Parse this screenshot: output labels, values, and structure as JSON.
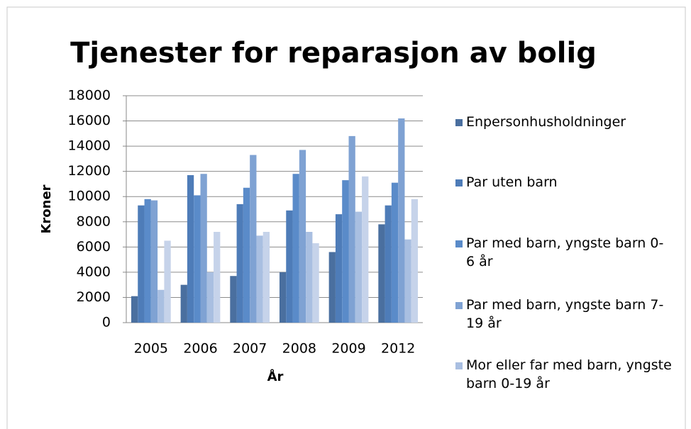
{
  "chart_data": {
    "type": "bar",
    "title": "Tjenester for reparasjon av bolig",
    "x_label": "År",
    "y_label": "Kroner",
    "categories": [
      "2005",
      "2006",
      "2007",
      "2008",
      "2009",
      "2012"
    ],
    "series": [
      {
        "name": "Enpersonhusholdninger",
        "color": "#4a6f9f",
        "values": [
          2100,
          3000,
          3700,
          4000,
          5600,
          7800
        ]
      },
      {
        "name": "Par uten barn",
        "color": "#4e7cb8",
        "values": [
          9300,
          11700,
          9400,
          8900,
          8600,
          9300
        ]
      },
      {
        "name": "Par med barn, yngste barn 0-6 år",
        "color": "#5a8bc9",
        "values": [
          9800,
          10100,
          10700,
          11800,
          11300,
          11100
        ]
      },
      {
        "name": "Par med barn, yngste barn 7-19 år",
        "color": "#7fa2d3",
        "values": [
          9700,
          11800,
          13300,
          13700,
          14800,
          16200
        ]
      },
      {
        "name": "Mor eller far med barn, yngste barn 0-19 år",
        "color": "#a9bfe1",
        "values": [
          2600,
          4000,
          6900,
          7200,
          8800,
          6600
        ]
      },
      {
        "color": "#c6d3ea",
        "values": [
          6500,
          7200,
          7200,
          6300,
          11600,
          9800
        ]
      }
    ],
    "ylim": [
      0,
      18000
    ],
    "yticks": [
      0,
      2000,
      4000,
      6000,
      8000,
      10000,
      12000,
      14000,
      16000,
      18000
    ],
    "grid": true,
    "legend": "right"
  }
}
